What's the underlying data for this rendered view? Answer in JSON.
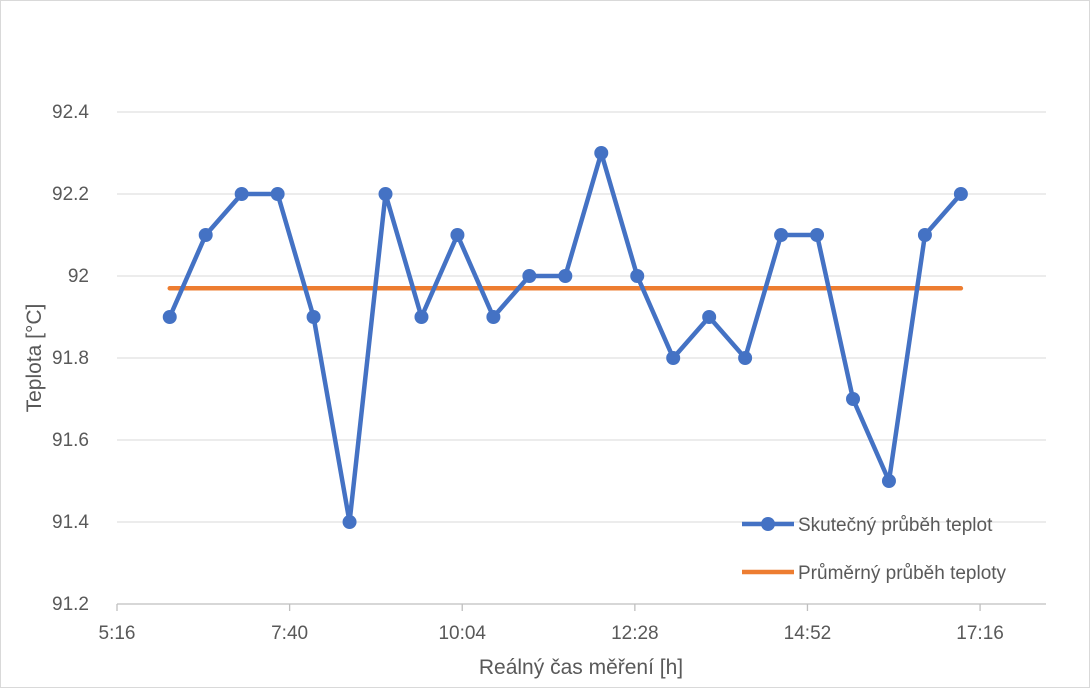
{
  "chart_data": {
    "type": "line",
    "xlabel": "Reálný čas měření [h]",
    "ylabel": "Teplota [°C]",
    "x_ticks": [
      "5:16",
      "7:40",
      "10:04",
      "12:28",
      "14:52",
      "17:16"
    ],
    "x_tick_values_min": [
      316,
      460,
      604,
      748,
      892,
      1036
    ],
    "xlim_min": [
      316,
      1091
    ],
    "y_ticks": [
      "91.2",
      "91.4",
      "91.6",
      "91.8",
      "92",
      "92.2",
      "92.4"
    ],
    "ylim": [
      91.2,
      92.4
    ],
    "grid": "horizontal",
    "legend_position": "bottom-right",
    "series": [
      {
        "name": "Skutečný průběh teplot",
        "color": "#4472c4",
        "marker": "circle",
        "x_time": [
          "6:00",
          "6:30",
          "7:00",
          "7:30",
          "8:00",
          "8:30",
          "9:00",
          "9:30",
          "10:00",
          "10:30",
          "11:00",
          "11:30",
          "12:00",
          "12:30",
          "13:00",
          "13:30",
          "14:00",
          "14:30",
          "15:00",
          "15:30",
          "16:00",
          "16:30",
          "17:00"
        ],
        "values": [
          91.9,
          92.1,
          92.2,
          92.2,
          91.9,
          91.4,
          92.2,
          91.9,
          92.1,
          91.9,
          92.0,
          92.0,
          92.3,
          92.0,
          91.8,
          91.9,
          91.8,
          92.1,
          92.1,
          91.7,
          91.5,
          92.1,
          92.2
        ]
      },
      {
        "name": "Průměrný průběh teploty",
        "color": "#ed7d31",
        "marker": "none",
        "x_time": [
          "6:00",
          "17:00"
        ],
        "values": [
          91.97,
          91.97
        ]
      }
    ]
  }
}
